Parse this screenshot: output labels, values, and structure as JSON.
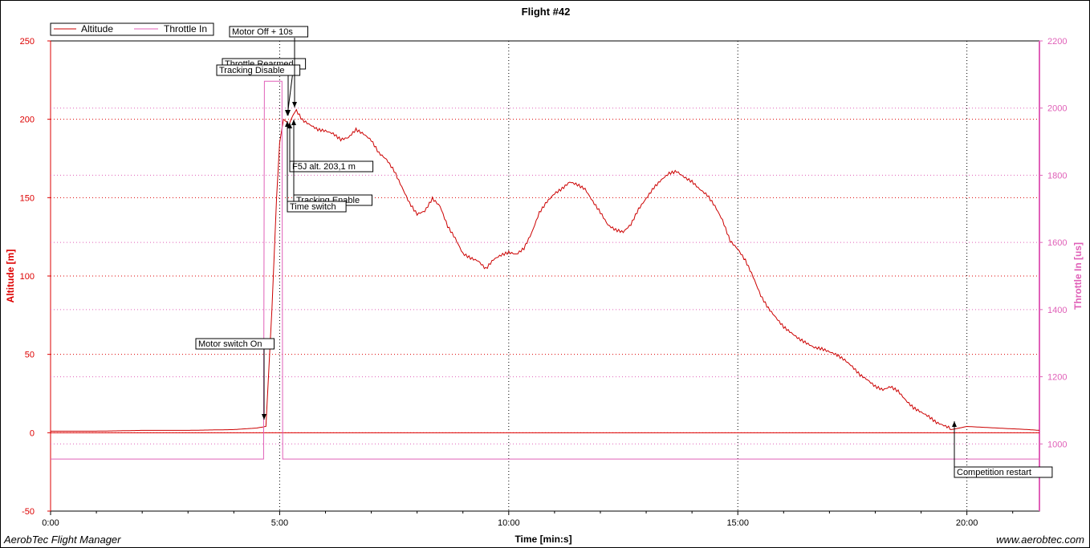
{
  "app": {
    "footer_left": "AerobTec Flight Manager",
    "footer_right": "www.aerobtec.com"
  },
  "chart_data": {
    "type": "line",
    "title": "Flight #42",
    "xlabel": "Time [min:s]",
    "ylabel": "Altitude [m]",
    "y2label": "Throttle In [us]",
    "xlim_seconds": [
      0,
      1295
    ],
    "ylim": [
      -50,
      250
    ],
    "y2lim": [
      800,
      2200
    ],
    "x_ticks": [
      "0:00",
      "5:00",
      "10:00",
      "15:00",
      "20:00"
    ],
    "y_ticks": [
      "-50",
      "0",
      "50",
      "100",
      "150",
      "200",
      "250"
    ],
    "y2_ticks": [
      "1000",
      "1200",
      "1400",
      "1600",
      "1800",
      "2000",
      "2200"
    ],
    "grid": true,
    "legend": {
      "placement": "top-left",
      "entries": [
        "Altitude",
        "Throttle In"
      ]
    },
    "colors": {
      "altitude": "#cc0000",
      "throttle": "#e060b8",
      "axis_left": "#dd0000",
      "axis_right": "#e060b8"
    },
    "series": [
      {
        "name": "Altitude",
        "axis": "left",
        "color": "#cc0000",
        "x": [
          0,
          60,
          120,
          180,
          240,
          270,
          282,
          290,
          296,
          300,
          305,
          310,
          312,
          315,
          318,
          322,
          330,
          340,
          350,
          360,
          370,
          380,
          390,
          400,
          410,
          420,
          430,
          440,
          450,
          460,
          470,
          480,
          490,
          500,
          510,
          520,
          530,
          540,
          550,
          560,
          570,
          580,
          590,
          600,
          610,
          620,
          630,
          640,
          650,
          660,
          670,
          680,
          690,
          700,
          710,
          720,
          730,
          740,
          750,
          760,
          770,
          780,
          790,
          800,
          810,
          820,
          830,
          840,
          850,
          860,
          870,
          880,
          890,
          900,
          910,
          920,
          930,
          940,
          950,
          960,
          970,
          980,
          990,
          1000,
          1010,
          1020,
          1030,
          1040,
          1050,
          1060,
          1070,
          1080,
          1090,
          1100,
          1110,
          1120,
          1130,
          1140,
          1150,
          1160,
          1170,
          1180,
          1190,
          1200,
          1220,
          1240,
          1260,
          1280,
          1295
        ],
        "y": [
          1,
          1,
          1.5,
          1.5,
          2,
          3,
          4,
          80,
          150,
          185,
          200,
          198,
          196,
          200,
          203,
          206,
          200,
          197,
          194,
          193,
          191,
          187,
          188,
          193,
          190,
          186,
          178,
          174,
          167,
          157,
          147,
          140,
          142,
          150,
          145,
          132,
          124,
          114,
          111,
          109,
          104,
          110,
          113,
          115,
          114,
          118,
          128,
          141,
          148,
          153,
          156,
          160,
          158,
          155,
          147,
          140,
          132,
          129,
          128,
          133,
          143,
          150,
          157,
          162,
          166,
          167,
          163,
          160,
          155,
          151,
          144,
          135,
          122,
          117,
          110,
          100,
          88,
          80,
          74,
          68,
          64,
          60,
          57,
          54,
          53,
          51,
          49,
          46,
          42,
          37,
          34,
          30,
          28,
          30,
          27,
          21,
          16,
          13,
          10,
          6,
          4,
          2,
          3,
          4,
          3.5,
          3,
          2.5,
          2,
          1.5
        ]
      },
      {
        "name": "Throttle In",
        "axis": "right",
        "color": "#e060b8",
        "x": [
          0,
          279,
          280,
          303,
          304,
          1295
        ],
        "y": [
          955,
          955,
          2080,
          2080,
          955,
          955
        ]
      }
    ],
    "annotations": [
      {
        "label": "Motor switch On",
        "x": 280,
        "y": 4
      },
      {
        "label": "Throttle Rearmed",
        "x": 310,
        "y": 200
      },
      {
        "label": "Tracking Disable",
        "x": 312,
        "y": 200
      },
      {
        "label": "Motor Off + 10s",
        "x": 318,
        "y": 205
      },
      {
        "label": "F5J alt. 203,1 m",
        "x": 310,
        "y": 196
      },
      {
        "label": "Tracking Enable",
        "x": 318,
        "y": 198
      },
      {
        "label": "Time switch",
        "x": 310,
        "y": 196
      },
      {
        "label": "Competition restart",
        "x": 1180,
        "y": 6
      }
    ]
  }
}
